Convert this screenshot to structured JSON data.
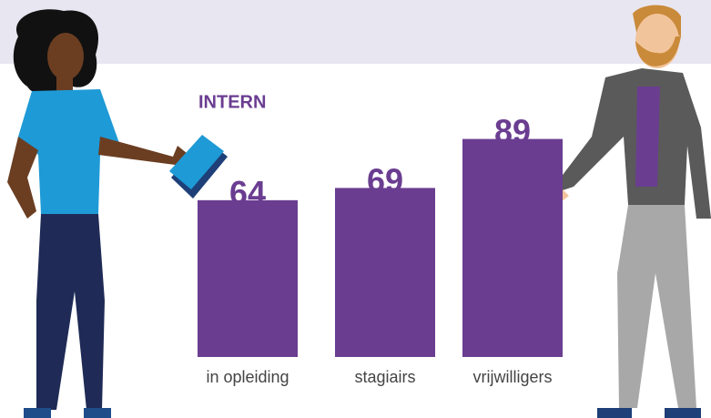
{
  "chart_data": {
    "type": "bar",
    "title": "INTERN",
    "categories": [
      "in opleiding",
      "stagiairs",
      "vrijwilligers"
    ],
    "values": [
      64,
      69,
      89
    ],
    "color": "#6a3d91"
  }
}
